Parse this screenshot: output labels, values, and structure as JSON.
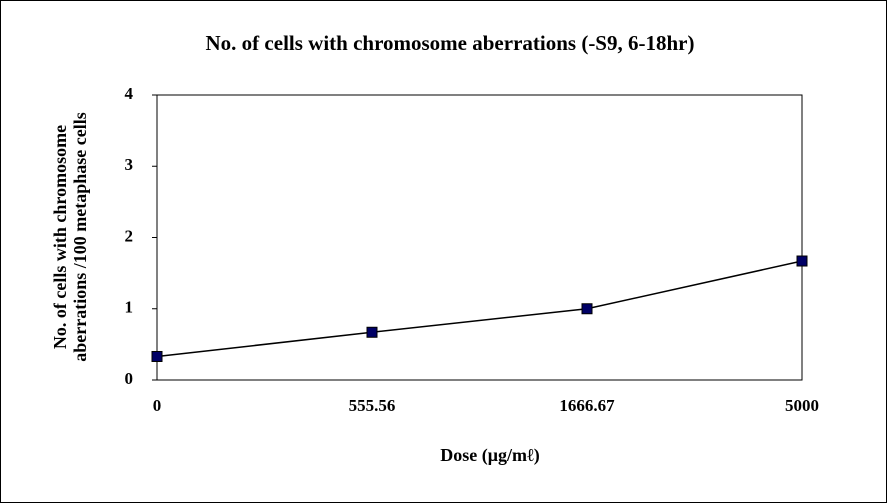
{
  "chart_data": {
    "type": "line",
    "title": "No. of cells with chromosome aberrations (-S9, 6-18hr)",
    "x_label": "Dose (μg/mℓ)",
    "y_label": [
      "No. of cells with chromosome",
      "aberrations /100 metaphase cells"
    ],
    "categories": [
      "0",
      "555.56",
      "1666.67",
      "5000"
    ],
    "series": [
      {
        "color": "#000066",
        "values": [
          0.33,
          0.67,
          1.0,
          1.67
        ]
      }
    ],
    "ylim": [
      0,
      4
    ],
    "yticks": [
      0,
      1,
      2,
      3,
      4
    ],
    "grid": false
  }
}
